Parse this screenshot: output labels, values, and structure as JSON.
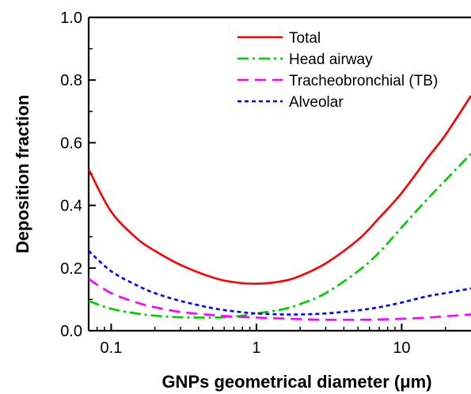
{
  "chart_data": {
    "type": "line",
    "xlabel": "GNPs geometrical diameter (μm)",
    "ylabel": "Deposition fraction",
    "xscale": "log",
    "xlim": [
      0.07,
      30
    ],
    "ylim": [
      0.0,
      1.0
    ],
    "x_ticks": [
      0.1,
      1,
      10
    ],
    "x_tick_labels": [
      "0.1",
      "1",
      "10"
    ],
    "y_ticks": [
      0.0,
      0.2,
      0.4,
      0.6,
      0.8,
      1.0
    ],
    "y_tick_labels": [
      "0.0",
      "0.2",
      "0.4",
      "0.6",
      "0.8",
      "1.0"
    ],
    "grid": false,
    "legend_position": "top-right",
    "series": [
      {
        "name": "Total",
        "color": "#ff0000",
        "style": "solid",
        "x": [
          0.07,
          0.1,
          0.15,
          0.2,
          0.3,
          0.5,
          0.7,
          1,
          1.5,
          2,
          3,
          5,
          7,
          10,
          15,
          20,
          30
        ],
        "y": [
          0.515,
          0.38,
          0.295,
          0.255,
          0.21,
          0.17,
          0.155,
          0.15,
          0.158,
          0.175,
          0.215,
          0.29,
          0.36,
          0.44,
          0.55,
          0.625,
          0.75
        ]
      },
      {
        "name": "Head airway",
        "color": "#00cc00",
        "style": "dashdot",
        "x": [
          0.07,
          0.1,
          0.15,
          0.2,
          0.3,
          0.5,
          0.7,
          1,
          1.5,
          2,
          3,
          5,
          7,
          10,
          15,
          20,
          30
        ],
        "y": [
          0.095,
          0.07,
          0.055,
          0.048,
          0.043,
          0.042,
          0.045,
          0.055,
          0.068,
          0.085,
          0.12,
          0.19,
          0.25,
          0.33,
          0.42,
          0.48,
          0.565
        ]
      },
      {
        "name": "Tracheobronchial (TB)",
        "color": "#ff00ff",
        "style": "dash",
        "x": [
          0.07,
          0.1,
          0.15,
          0.2,
          0.3,
          0.5,
          0.7,
          1,
          1.5,
          2,
          3,
          5,
          7,
          10,
          15,
          20,
          30
        ],
        "y": [
          0.165,
          0.12,
          0.09,
          0.075,
          0.06,
          0.05,
          0.045,
          0.042,
          0.039,
          0.037,
          0.035,
          0.035,
          0.036,
          0.038,
          0.042,
          0.046,
          0.052
        ]
      },
      {
        "name": "Alveolar",
        "color": "#0000ff",
        "style": "dot",
        "x": [
          0.07,
          0.1,
          0.15,
          0.2,
          0.3,
          0.5,
          0.7,
          1,
          1.5,
          2,
          3,
          5,
          7,
          10,
          15,
          20,
          30
        ],
        "y": [
          0.255,
          0.19,
          0.145,
          0.12,
          0.095,
          0.072,
          0.062,
          0.055,
          0.052,
          0.052,
          0.055,
          0.065,
          0.075,
          0.09,
          0.11,
          0.12,
          0.135
        ]
      }
    ]
  }
}
